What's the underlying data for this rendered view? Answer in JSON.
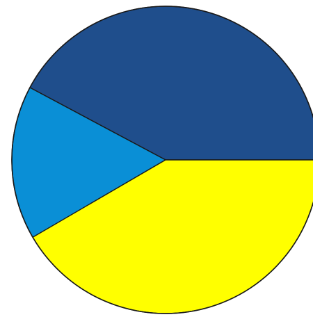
{
  "chart_data": {
    "type": "pie",
    "title": "",
    "start_angle_deg": 0,
    "direction": "counterclockwise",
    "legend": "none",
    "slices": [
      {
        "value": 42.2,
        "color": "#1f4e8c"
      },
      {
        "value": 16.2,
        "color": "#0a8fd6"
      },
      {
        "value": 41.6,
        "color": "#ffff00"
      }
    ]
  }
}
